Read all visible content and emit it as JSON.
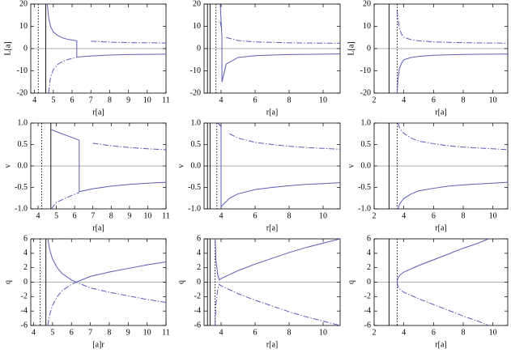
{
  "chart_data": [
    {
      "type": "line",
      "xlabel": "r[a]",
      "ylabel": "L[a]",
      "xlim": [
        3.8,
        11
      ],
      "xticks": [
        4,
        5,
        6,
        7,
        8,
        9,
        10,
        11
      ],
      "ylim": [
        -20,
        20
      ],
      "yticks": [
        -20,
        -10,
        0,
        10,
        20
      ],
      "vlines": [
        {
          "x": 4.2,
          "style": "dotted",
          "color": "#000000"
        },
        {
          "x": 4.6,
          "style": "solid",
          "color": "#000000"
        }
      ],
      "x": [
        4.68,
        4.75,
        4.85,
        5,
        5.25,
        5.5,
        5.75,
        6,
        6.25,
        6.25,
        7,
        8,
        9,
        10,
        11
      ],
      "series": [
        {
          "style": "solid",
          "color": "#5b5bb5",
          "values": [
            20,
            14,
            10,
            7.5,
            5.8,
            4.8,
            4.2,
            3.8,
            3.5,
            -3.8,
            -3.3,
            -2.9,
            -2.7,
            -2.6,
            -2.5
          ]
        },
        {
          "style": "dashdot",
          "color": "#5b5bb5",
          "values": [
            null,
            -20,
            -13,
            -9.5,
            -7,
            -5.8,
            -5,
            -4.4,
            -4,
            null,
            3.3,
            2.9,
            2.7,
            2.6,
            2.5
          ]
        }
      ]
    },
    {
      "type": "line",
      "xlabel": "r[a]",
      "xlim": [
        3,
        11
      ],
      "xticks": [
        4,
        6,
        8,
        10
      ],
      "ylim": [
        -20,
        20
      ],
      "yticks": [
        -20,
        -10,
        0,
        10,
        20
      ],
      "vlines": [
        {
          "x": 3.2,
          "style": "solid",
          "color": "#000000"
        },
        {
          "x": 3.35,
          "style": "solid",
          "color": "#000000"
        },
        {
          "x": 3.7,
          "style": "dotted",
          "color": "#000000"
        }
      ],
      "x": [
        3.75,
        3.85,
        3.95,
        4.05,
        4.05,
        4.3,
        5,
        6,
        7,
        8,
        9,
        10,
        11
      ],
      "series": [
        {
          "style": "solid",
          "color": "#5b5bb5",
          "values": [
            null,
            null,
            20,
            5,
            -15,
            -7,
            -4,
            -3.2,
            -2.9,
            -2.7,
            -2.6,
            -2.5,
            -2.4
          ]
        },
        {
          "style": "dashdot",
          "color": "#5b5bb5",
          "values": [
            -20,
            null,
            12,
            8,
            null,
            5,
            3.6,
            3,
            2.8,
            2.6,
            2.5,
            2.45,
            2.4
          ]
        }
      ]
    },
    {
      "type": "line",
      "xlabel": "r[a]",
      "ylabel": "L[a]",
      "xlim": [
        2,
        11
      ],
      "xticks": [
        2,
        4,
        6,
        8,
        10
      ],
      "ylim": [
        -20,
        20
      ],
      "yticks": [
        -20,
        -10,
        0,
        10,
        20
      ],
      "vlines": [
        {
          "x": 3.0,
          "style": "solid",
          "color": "#000000"
        },
        {
          "x": 3.55,
          "style": "dotted",
          "color": "#000000"
        }
      ],
      "x": [
        3.55,
        3.6,
        3.7,
        3.85,
        4,
        4.5,
        5,
        6,
        7,
        8,
        9,
        10,
        11
      ],
      "series": [
        {
          "style": "solid",
          "color": "#5b5bb5",
          "values": [
            -20,
            -14,
            -9,
            -6.5,
            -5,
            -4,
            -3.5,
            -3,
            -2.8,
            -2.65,
            -2.55,
            -2.5,
            -2.45
          ]
        },
        {
          "style": "dashdot",
          "color": "#5b5bb5",
          "values": [
            17,
            14,
            9,
            6.5,
            5,
            4,
            3.5,
            3,
            2.8,
            2.65,
            2.55,
            2.5,
            2.45
          ]
        }
      ]
    },
    {
      "type": "line",
      "xlabel": "r[a]",
      "ylabel": "v",
      "xlim": [
        3.6,
        11
      ],
      "xticks": [
        4,
        5,
        6,
        7,
        8,
        9,
        10,
        11
      ],
      "ylim": [
        -1,
        1
      ],
      "yticks": [
        {
          "value": -1,
          "label": "-1.0"
        },
        -0.5,
        {
          "value": 0,
          "label": "0.0"
        },
        0.5,
        {
          "value": 1,
          "label": "1.0"
        }
      ],
      "vlines": [
        {
          "x": 4.2,
          "style": "dotted",
          "color": "#000000"
        },
        {
          "x": 4.7,
          "style": "solid",
          "color": "#000000"
        }
      ],
      "x": [
        4.72,
        5,
        5.5,
        6,
        6.25,
        6.25,
        7,
        8,
        9,
        10,
        11
      ],
      "series": [
        {
          "style": "solid",
          "color": "#5b5bb5",
          "values": [
            0.85,
            0.8,
            0.72,
            0.64,
            0.6,
            -0.6,
            -0.53,
            -0.47,
            -0.43,
            -0.4,
            -0.38
          ]
        },
        {
          "style": "dashdot",
          "color": "#5b5bb5",
          "values": [
            -1,
            -0.85,
            -0.75,
            -0.66,
            -0.62,
            null,
            0.53,
            0.47,
            0.43,
            0.4,
            0.38
          ]
        }
      ]
    },
    {
      "type": "line",
      "xlabel": "r[a]",
      "ylabel": "v",
      "xlim": [
        3,
        11
      ],
      "xticks": [
        4,
        6,
        8,
        10
      ],
      "ylim": [
        -1,
        1
      ],
      "yticks": [
        {
          "value": -1,
          "label": "-1.0"
        },
        -0.5,
        {
          "value": 0,
          "label": "0.0"
        },
        0.5,
        {
          "value": 1,
          "label": "1.0"
        }
      ],
      "vlines": [
        {
          "x": 3.2,
          "style": "solid",
          "color": "#000000"
        },
        {
          "x": 3.35,
          "style": "solid",
          "color": "#000000"
        },
        {
          "x": 3.75,
          "style": "dotted",
          "color": "#000000"
        }
      ],
      "x": [
        3.8,
        4,
        4,
        4.5,
        5,
        6,
        7,
        8,
        9,
        10,
        11
      ],
      "series": [
        {
          "style": "solid",
          "color": "#5b5bb5",
          "values": [
            1,
            0.92,
            -0.95,
            -0.75,
            -0.65,
            -0.55,
            -0.5,
            -0.46,
            -0.43,
            -0.41,
            -0.39
          ]
        },
        {
          "style": "dashdot",
          "color": "#5b5bb5",
          "values": [
            1,
            0.93,
            null,
            0.75,
            0.65,
            0.55,
            0.5,
            0.46,
            0.43,
            0.41,
            0.39
          ]
        }
      ]
    },
    {
      "type": "line",
      "xlabel": "r[a]",
      "ylabel": "v",
      "xlim": [
        2,
        11
      ],
      "xticks": [
        2,
        4,
        6,
        8,
        10
      ],
      "ylim": [
        -1,
        1
      ],
      "yticks": [
        {
          "value": -1,
          "label": "-1.0"
        },
        -0.5,
        {
          "value": 0,
          "label": "0.0"
        },
        0.5,
        {
          "value": 1,
          "label": "1.0"
        }
      ],
      "vlines": [
        {
          "x": 3.0,
          "style": "solid",
          "color": "#000000"
        },
        {
          "x": 3.55,
          "style": "dotted",
          "color": "#000000"
        }
      ],
      "x": [
        3.6,
        3.7,
        3.85,
        4,
        4.5,
        5,
        6,
        7,
        8,
        9,
        10,
        11
      ],
      "series": [
        {
          "style": "solid",
          "color": "#5b5bb5",
          "values": [
            -1,
            -0.9,
            -0.82,
            -0.76,
            -0.65,
            -0.58,
            -0.52,
            -0.47,
            -0.44,
            -0.42,
            -0.4,
            -0.38
          ]
        },
        {
          "style": "dashdot",
          "color": "#5b5bb5",
          "values": [
            1,
            0.9,
            0.82,
            0.76,
            0.65,
            0.58,
            0.52,
            0.47,
            0.44,
            0.42,
            0.4,
            0.38
          ]
        }
      ]
    },
    {
      "type": "line",
      "xlabel": "[a]r",
      "ylabel": "q",
      "xlim": [
        3.85,
        11
      ],
      "xticks": [
        4,
        5,
        6,
        7,
        8,
        9,
        10,
        11
      ],
      "ylim": [
        -6,
        6
      ],
      "yticks": [
        -6,
        -4,
        -2,
        0,
        2,
        4,
        6
      ],
      "vlines": [
        {
          "x": 4.35,
          "style": "dotted",
          "color": "#000000"
        },
        {
          "x": 4.65,
          "style": "solid",
          "color": "#000000"
        }
      ],
      "x": [
        4.75,
        4.85,
        5,
        5.25,
        5.5,
        6,
        6.25,
        7,
        8,
        9,
        10,
        11
      ],
      "series": [
        {
          "style": "solid",
          "color": "#5b5bb5",
          "values": [
            6,
            4.5,
            3.2,
            2,
            1.2,
            0.3,
            0,
            0.8,
            1.4,
            1.9,
            2.4,
            2.8
          ]
        },
        {
          "style": "dashdot",
          "color": "#5b5bb5",
          "values": [
            -6,
            -4.5,
            -3.2,
            -2,
            -1.2,
            -0.3,
            0,
            -0.8,
            -1.4,
            -1.9,
            -2.4,
            -2.8
          ]
        }
      ]
    },
    {
      "type": "line",
      "xlabel": "r[a]",
      "ylabel": "q",
      "xlim": [
        3,
        11
      ],
      "xticks": [
        4,
        6,
        8,
        10
      ],
      "ylim": [
        -6,
        6
      ],
      "yticks": [
        -6,
        -4,
        -2,
        0,
        2,
        4,
        6
      ],
      "vlines": [
        {
          "x": 3.2,
          "style": "solid",
          "color": "#000000"
        },
        {
          "x": 3.35,
          "style": "solid",
          "color": "#000000"
        },
        {
          "x": 3.65,
          "style": "dotted",
          "color": "#000000"
        }
      ],
      "x": [
        3.65,
        3.7,
        3.8,
        3.9,
        4,
        5,
        6,
        7,
        8,
        9,
        10,
        11
      ],
      "series": [
        {
          "style": "solid",
          "color": "#5b5bb5",
          "values": [
            6,
            3,
            1,
            0.3,
            0.5,
            1.6,
            2.5,
            3.3,
            4.1,
            4.8,
            5.4,
            6
          ]
        },
        {
          "style": "dashdot",
          "color": "#5b5bb5",
          "values": [
            -6,
            -3,
            -1,
            -0.3,
            -0.5,
            -1.6,
            -2.5,
            -3.3,
            -4.1,
            -4.8,
            -5.4,
            -6
          ]
        }
      ]
    },
    {
      "type": "line",
      "xlabel": "r[a]",
      "ylabel": "q",
      "xlim": [
        2,
        11
      ],
      "xticks": [
        2,
        4,
        6,
        8,
        10
      ],
      "ylim": [
        -6,
        6
      ],
      "yticks": [
        -6,
        -4,
        -2,
        0,
        2,
        4,
        6
      ],
      "vlines": [
        {
          "x": 3.0,
          "style": "solid",
          "color": "#000000"
        },
        {
          "x": 3.55,
          "style": "dotted",
          "color": "#000000"
        }
      ],
      "x": [
        3.55,
        3.6,
        3.8,
        4,
        5,
        6,
        7,
        8,
        9,
        9.7
      ],
      "series": [
        {
          "style": "solid",
          "color": "#5b5bb5",
          "values": [
            0,
            0.6,
            1.1,
            1.4,
            2.3,
            3.1,
            3.9,
            4.7,
            5.4,
            6
          ]
        },
        {
          "style": "dashdot",
          "color": "#5b5bb5",
          "values": [
            0,
            -0.6,
            -1.1,
            -1.4,
            -2.3,
            -3.1,
            -3.9,
            -4.7,
            -5.4,
            -6
          ]
        }
      ]
    }
  ]
}
